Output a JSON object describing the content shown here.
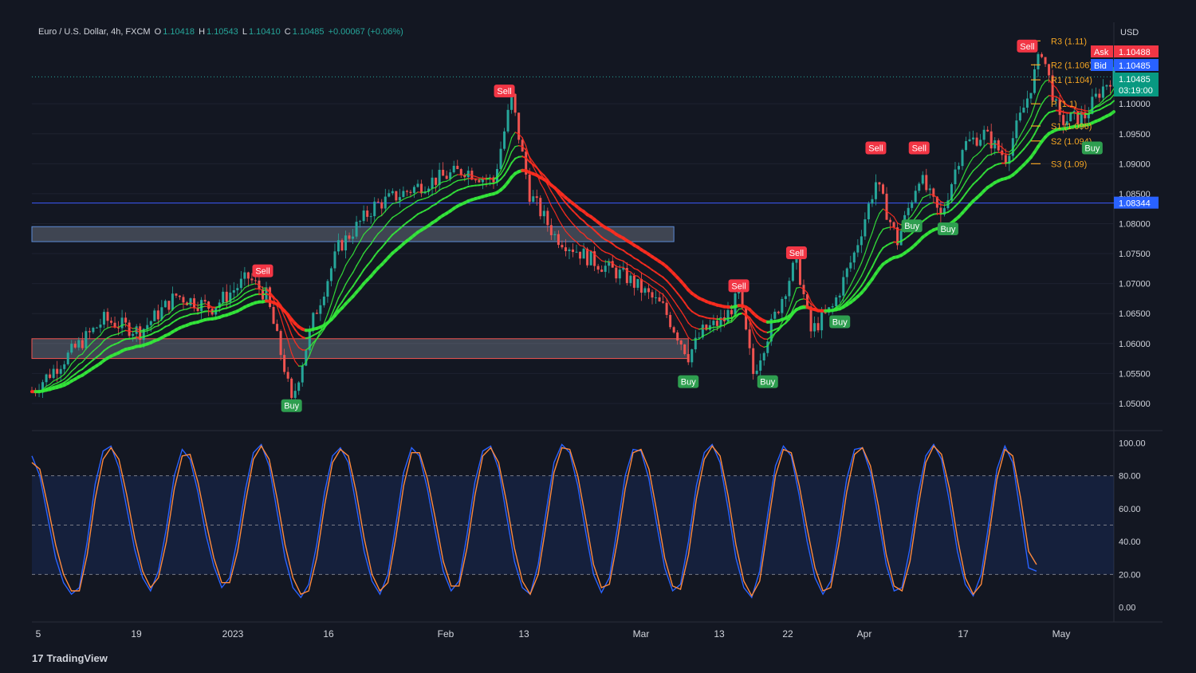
{
  "legend": {
    "symbol": "Euro / U.S. Dollar, 4h, FXCM",
    "open_label": "O",
    "open": "1.10418",
    "high_label": "H",
    "high": "1.10543",
    "low_label": "L",
    "low": "1.10410",
    "close_label": "C",
    "close": "1.10485",
    "change": "+0.00067 (+0.06%)"
  },
  "branding": {
    "logo": "17",
    "name": "TradingView"
  },
  "colors": {
    "background": "#131722",
    "grid": "#1e2230",
    "text": "#d1d4dc",
    "bull": "#26a69a",
    "bear": "#ef5350",
    "green_ma": "#34e83a",
    "red_ma": "#ff2d1f",
    "pivot": "#f5a623",
    "ask": "#f23645",
    "bid": "#2962ff",
    "current": "#089981",
    "stoch_k": "#2962ff",
    "stoch_d": "#ff8a3d"
  },
  "chart_data": [
    {
      "type": "candlestick",
      "title": "Euro / U.S. Dollar, 4h, FXCM",
      "currency": "USD",
      "x_ticks": [
        "5",
        "19",
        "2023",
        "16",
        "Feb",
        "13",
        "Mar",
        "13",
        "22",
        "Apr",
        "17",
        "May"
      ],
      "y_ticks": [
        "1.05000",
        "1.05500",
        "1.06000",
        "1.06500",
        "1.07000",
        "1.07500",
        "1.08000",
        "1.08500",
        "1.09000",
        "1.09500",
        "1.10000"
      ],
      "ylim": [
        1.046,
        1.112
      ],
      "close_path_points": [
        [
          0,
          1.052
        ],
        [
          10,
          1.058
        ],
        [
          20,
          1.064
        ],
        [
          30,
          1.062
        ],
        [
          40,
          1.068
        ],
        [
          50,
          1.066
        ],
        [
          60,
          1.071
        ],
        [
          65,
          1.068
        ],
        [
          70,
          1.056
        ],
        [
          72,
          1.05
        ],
        [
          78,
          1.064
        ],
        [
          85,
          1.076
        ],
        [
          95,
          1.083
        ],
        [
          110,
          1.087
        ],
        [
          120,
          1.089
        ],
        [
          128,
          1.087
        ],
        [
          133,
          1.101
        ],
        [
          138,
          1.085
        ],
        [
          145,
          1.078
        ],
        [
          155,
          1.074
        ],
        [
          165,
          1.071
        ],
        [
          175,
          1.066
        ],
        [
          182,
          1.058
        ],
        [
          186,
          1.062
        ],
        [
          192,
          1.064
        ],
        [
          196,
          1.068
        ],
        [
          200,
          1.055
        ],
        [
          205,
          1.063
        ],
        [
          212,
          1.074
        ],
        [
          216,
          1.062
        ],
        [
          222,
          1.066
        ],
        [
          228,
          1.075
        ],
        [
          234,
          1.087
        ],
        [
          240,
          1.077
        ],
        [
          246,
          1.088
        ],
        [
          252,
          1.081
        ],
        [
          258,
          1.093
        ],
        [
          264,
          1.095
        ],
        [
          270,
          1.091
        ],
        [
          276,
          1.101
        ],
        [
          280,
          1.109
        ],
        [
          285,
          1.097
        ],
        [
          292,
          1.098
        ],
        [
          296,
          1.102
        ],
        [
          300,
          1.105
        ]
      ],
      "pivots": [
        {
          "label": "R3 (1.11)",
          "value": 1.1105
        },
        {
          "label": "R2 (1.106)",
          "value": 1.1065
        },
        {
          "label": "R1 (1.104)",
          "value": 1.104
        },
        {
          "label": "P (1.1)",
          "value": 1.1
        },
        {
          "label": "S1 (1.096)",
          "value": 1.0963
        },
        {
          "label": "S2 (1.094)",
          "value": 1.0938
        },
        {
          "label": "S3 (1.09)",
          "value": 1.09
        }
      ],
      "signals": [
        {
          "text": "Sell",
          "x": 64,
          "value": 1.072
        },
        {
          "text": "Buy",
          "x": 72,
          "value": 1.0495
        },
        {
          "text": "Sell",
          "x": 131,
          "value": 1.102
        },
        {
          "text": "Sell",
          "x": 196,
          "value": 1.0695
        },
        {
          "text": "Buy",
          "x": 182,
          "value": 1.0535
        },
        {
          "text": "Buy",
          "x": 204,
          "value": 1.0535
        },
        {
          "text": "Sell",
          "x": 212,
          "value": 1.075
        },
        {
          "text": "Buy",
          "x": 224,
          "value": 1.0635
        },
        {
          "text": "Sell",
          "x": 234,
          "value": 1.0925
        },
        {
          "text": "Sell",
          "x": 246,
          "value": 1.0925
        },
        {
          "text": "Buy",
          "x": 244,
          "value": 1.0795
        },
        {
          "text": "Buy",
          "x": 254,
          "value": 1.079
        },
        {
          "text": "Sell",
          "x": 276,
          "value": 1.1095
        },
        {
          "text": "Buy",
          "x": 294,
          "value": 1.0925
        }
      ],
      "zones": [
        {
          "x0": 0,
          "x1": 178,
          "y0": 1.0795,
          "y1": 1.077,
          "color": "blue"
        },
        {
          "x0": 0,
          "x1": 182,
          "y0": 1.0608,
          "y1": 1.0575,
          "color": "red"
        }
      ],
      "price_labels": {
        "ask_label": "Ask",
        "ask": "1.10488",
        "bid_label": "Bid",
        "bid": "1.10485",
        "current": "1.10485",
        "countdown": "03:19:00",
        "line_level": "1.08344"
      }
    },
    {
      "type": "line",
      "title": "",
      "y_ticks": [
        "0.00",
        "20.00",
        "40.00",
        "60.00",
        "80.00",
        "100.00"
      ],
      "ylim": [
        -5,
        105
      ],
      "band": [
        20,
        80
      ],
      "series": [
        {
          "values": [
            92,
            80,
            55,
            30,
            15,
            8,
            12,
            40,
            75,
            95,
            98,
            85,
            60,
            35,
            18,
            10,
            22,
            48,
            80,
            96,
            90,
            70,
            44,
            25,
            12,
            18,
            42,
            72,
            94,
            99,
            86,
            58,
            30,
            12,
            6,
            14,
            38,
            70,
            92,
            97,
            88,
            62,
            34,
            16,
            8,
            20,
            50,
            82,
            97,
            92,
            72,
            46,
            22,
            10,
            16,
            44,
            76,
            95,
            98,
            84,
            56,
            28,
            12,
            8,
            26,
            58,
            88,
            99,
            94,
            74,
            46,
            20,
            9,
            18,
            48,
            80,
            96,
            95,
            78,
            50,
            24,
            10,
            14,
            40,
            74,
            94,
            99,
            88,
            60,
            30,
            12,
            6,
            22,
            56,
            86,
            98,
            92,
            68,
            40,
            18,
            8,
            16,
            46,
            78,
            96,
            97,
            82,
            54,
            26,
            10,
            12,
            36,
            68,
            92,
            99,
            90,
            64,
            34,
            14,
            7,
            20,
            52,
            84,
            98,
            88,
            56,
            24,
            22
          ]
        },
        {
          "values": [
            88,
            84,
            62,
            38,
            20,
            10,
            10,
            32,
            66,
            90,
            97,
            90,
            68,
            42,
            22,
            12,
            18,
            40,
            72,
            92,
            93,
            76,
            52,
            30,
            15,
            15,
            34,
            64,
            90,
            98,
            90,
            66,
            38,
            18,
            8,
            10,
            30,
            62,
            88,
            96,
            92,
            70,
            42,
            20,
            10,
            15,
            42,
            74,
            94,
            94,
            78,
            54,
            28,
            13,
            13,
            36,
            68,
            92,
            97,
            88,
            64,
            36,
            16,
            8,
            20,
            50,
            82,
            97,
            96,
            80,
            54,
            26,
            12,
            14,
            40,
            72,
            94,
            96,
            84,
            58,
            30,
            13,
            11,
            32,
            66,
            90,
            98,
            92,
            68,
            38,
            16,
            7,
            16,
            48,
            80,
            96,
            94,
            74,
            48,
            24,
            10,
            12,
            38,
            70,
            93,
            97,
            86,
            62,
            32,
            13,
            10,
            28,
            60,
            88,
            98,
            93,
            72,
            42,
            18,
            8,
            14,
            44,
            78,
            96,
            92,
            66,
            34,
            26
          ]
        }
      ]
    }
  ]
}
